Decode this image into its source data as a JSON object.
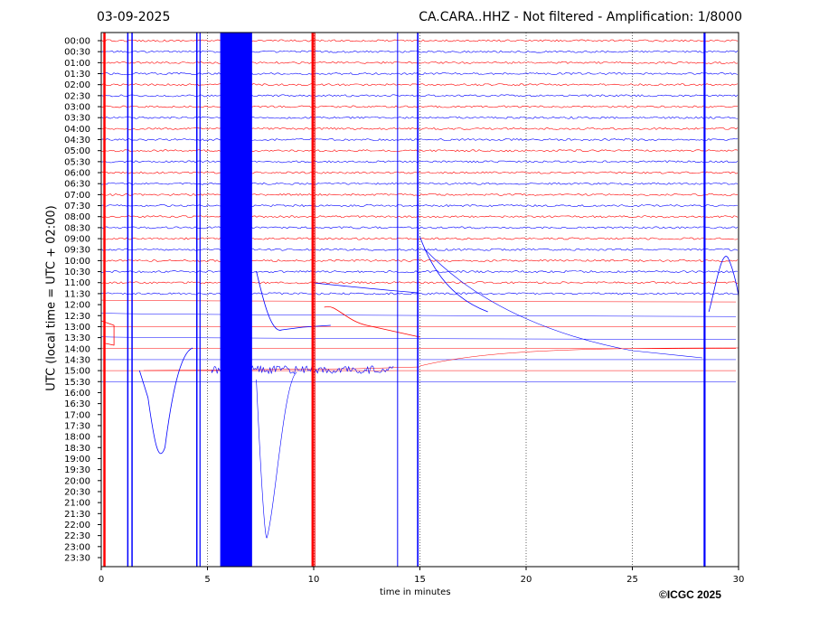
{
  "header": {
    "date": "03-09-2025",
    "title": "CA.CARA..HHZ - Not filtered - Amplification: 1/8000"
  },
  "footer": {
    "credit": "©ICGC 2025"
  },
  "chart_data": {
    "type": "line",
    "title": "CA.CARA..HHZ - Not filtered - Amplification: 1/8000",
    "xlabel": "time in minutes",
    "ylabel": "UTC (local time = UTC + 02:00)",
    "xlim": [
      0,
      30
    ],
    "x_ticks": [
      0,
      5,
      10,
      15,
      20,
      25,
      30
    ],
    "y_ticks": [
      "00:00",
      "00:30",
      "01:00",
      "01:30",
      "02:00",
      "02:30",
      "03:00",
      "03:30",
      "04:00",
      "04:30",
      "05:00",
      "05:30",
      "06:00",
      "06:30",
      "07:00",
      "07:30",
      "08:00",
      "08:30",
      "09:00",
      "09:30",
      "10:00",
      "10:30",
      "11:00",
      "11:30",
      "12:00",
      "12:30",
      "13:00",
      "13:30",
      "14:00",
      "14:30",
      "15:00",
      "15:30",
      "16:00",
      "16:30",
      "17:00",
      "17:30",
      "18:00",
      "18:30",
      "19:00",
      "19:30",
      "20:00",
      "20:30",
      "21:00",
      "21:30",
      "22:00",
      "22:30",
      "23:00",
      "23:30"
    ],
    "grid": "vertical dotted lines at x ticks",
    "trace_colors": [
      "#ff0000",
      "#0000ff"
    ],
    "events_minutes": [
      0.15,
      1.35,
      4.5,
      6.2,
      10.0,
      14.9,
      28.4
    ],
    "saturated_band_minutes": [
      5.6,
      7.1
    ]
  }
}
